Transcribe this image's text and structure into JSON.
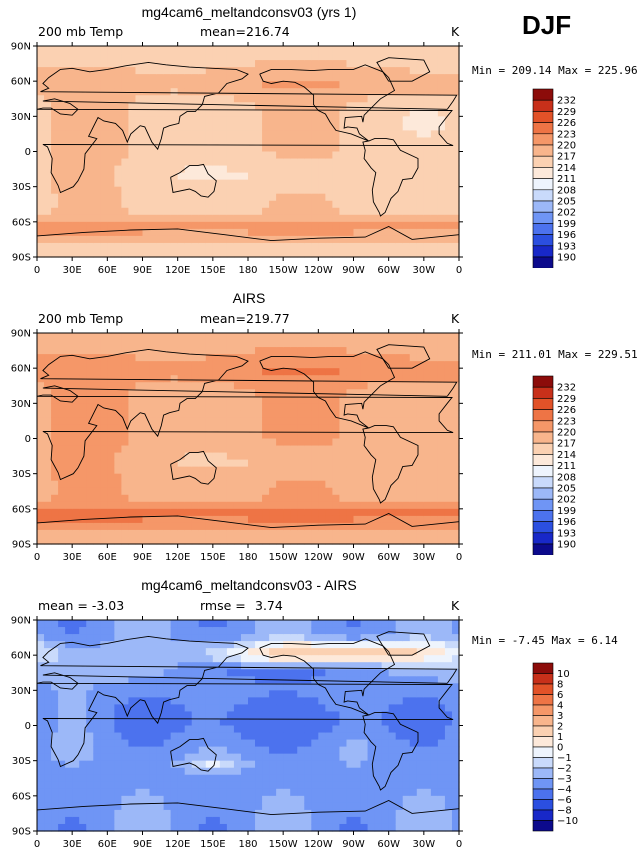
{
  "season_label": "DJF",
  "colors": {
    "abs": [
      "#0c0a8c",
      "#1828c8",
      "#2b4fe0",
      "#4c72ee",
      "#6f95f5",
      "#9cb8f8",
      "#c9dafb",
      "#eef4fd",
      "#fde9da",
      "#fbd1b2",
      "#f8b58c",
      "#f59768",
      "#ee7445",
      "#e25228",
      "#c8301a",
      "#8c0c0a"
    ],
    "diff": [
      "#0c0a8c",
      "#1828c8",
      "#2b4fe0",
      "#4c72ee",
      "#6f95f5",
      "#9cb8f8",
      "#c9dafb",
      "#eef4fd",
      "#fde9da",
      "#fbd1b2",
      "#f8b58c",
      "#f59768",
      "#ee7445",
      "#e25228",
      "#c8301a",
      "#8c0c0a"
    ],
    "coast": "#000000"
  },
  "chart_data": [
    {
      "type": "contour_map",
      "title": "mg4cam6_meltandconsv03 (yrs 1)",
      "left_label": "200 mb Temp",
      "stat_label": "mean=",
      "stat_value": "216.74",
      "units": "K",
      "minmax": "Min = 209.14 Max = 225.96",
      "min": 209.14,
      "max": 225.96,
      "mean": 216.74,
      "colorbar_levels": [
        "232",
        "229",
        "226",
        "223",
        "220",
        "217",
        "214",
        "211",
        "208",
        "205",
        "202",
        "199",
        "196",
        "193",
        "190"
      ],
      "x_ticks": [
        "0",
        "30E",
        "60E",
        "90E",
        "120E",
        "150E",
        "180",
        "150W",
        "120W",
        "90W",
        "60W",
        "30W",
        "0"
      ],
      "y_ticks": [
        "90N",
        "60N",
        "30N",
        "0",
        "30S",
        "60S",
        "90S"
      ]
    },
    {
      "type": "contour_map",
      "title": "AIRS",
      "left_label": "200 mb Temp",
      "stat_label": "mean=",
      "stat_value": "219.77",
      "units": "K",
      "minmax": "Min = 211.01 Max = 229.51",
      "min": 211.01,
      "max": 229.51,
      "mean": 219.77,
      "colorbar_levels": [
        "232",
        "229",
        "226",
        "223",
        "220",
        "217",
        "214",
        "211",
        "208",
        "205",
        "202",
        "199",
        "196",
        "193",
        "190"
      ],
      "x_ticks": [
        "0",
        "30E",
        "60E",
        "90E",
        "120E",
        "150E",
        "180",
        "150W",
        "120W",
        "90W",
        "60W",
        "30W",
        "0"
      ],
      "y_ticks": [
        "90N",
        "60N",
        "30N",
        "0",
        "30S",
        "60S",
        "90S"
      ]
    },
    {
      "type": "contour_map",
      "title": "mg4cam6_meltandconsv03 - AIRS",
      "left_label": "mean =  -3.03",
      "stat_label": "rmse =",
      "stat_value": "3.74",
      "units": "K",
      "minmax": "Min =  -7.45 Max =   6.14",
      "min": -7.45,
      "max": 6.14,
      "mean": -3.03,
      "rmse": 3.74,
      "colorbar_levels": [
        "10",
        "8",
        "6",
        "4",
        "3",
        "2",
        "1",
        "0",
        "−1",
        "−2",
        "−3",
        "−4",
        "−6",
        "−8",
        "−10"
      ],
      "x_ticks": [
        "0",
        "30E",
        "60E",
        "90E",
        "120E",
        "150E",
        "180",
        "150W",
        "120W",
        "90W",
        "60W",
        "30W",
        "0"
      ],
      "y_ticks": [
        "90N",
        "60N",
        "30N",
        "0",
        "30S",
        "60S",
        "90S"
      ]
    }
  ]
}
